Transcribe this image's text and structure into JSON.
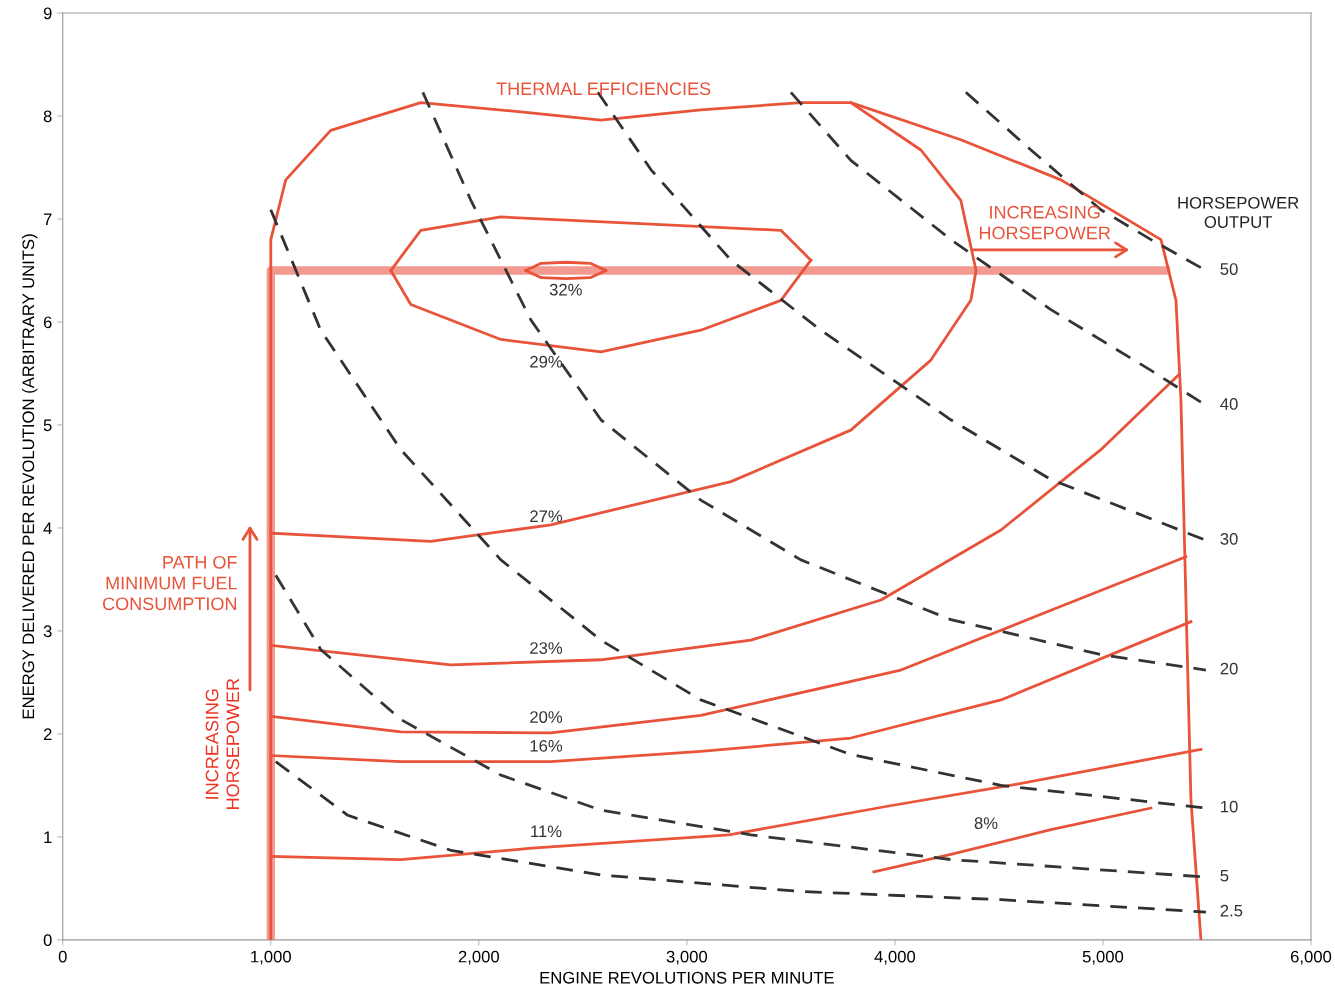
{
  "chart_data": {
    "type": "line",
    "xlabel": "ENGINE REVOLUTIONS PER MINUTE",
    "ylabel": "ENERGY DELIVERED PER REVOLUTION (ARBITRARY UNITS)",
    "xlim": [
      0,
      6000
    ],
    "ylim": [
      0,
      9
    ],
    "xticks": [
      0,
      {
        "value": 1000,
        "label": "1,000"
      },
      {
        "value": 2000,
        "label": "2,000"
      },
      {
        "value": 3000,
        "label": "3,000"
      },
      {
        "value": 4000,
        "label": "4,000"
      },
      {
        "value": 5000,
        "label": "5,000"
      },
      {
        "value": 6000,
        "label": "6,000"
      }
    ],
    "yticks": [
      0,
      1,
      2,
      3,
      4,
      5,
      6,
      7,
      8,
      9
    ],
    "grid": false,
    "legend": false,
    "marker": "none",
    "series": [
      {
        "color": "#f29a90",
        "line_style": "solid",
        "x": [
          1000,
          1000,
          5303
        ],
        "values": [
          0,
          6.5,
          6.5
        ]
      },
      {
        "color": "#e8533a",
        "line_style": "solid",
        "x": [
          1000,
          1000,
          1072,
          1288,
          1721,
          2202,
          2587,
          3067,
          3548,
          3788,
          4317,
          4798,
          5279,
          5351,
          5375,
          5399,
          5423,
          5471
        ],
        "values": [
          0,
          6.8,
          7.38,
          7.86,
          8.13,
          8.04,
          7.96,
          8.06,
          8.13,
          8.13,
          7.77,
          7.38,
          6.8,
          6.21,
          5.24,
          3.3,
          1.36,
          0
        ]
      },
      {
        "color": "#e9533a",
        "line_style": "solid",
        "x": [
          2226,
          2300,
          2418,
          2536,
          2610
        ],
        "values": [
          6.5,
          6.57,
          6.58,
          6.57,
          6.5
        ]
      },
      {
        "color": "#e9533a",
        "line_style": "solid",
        "x": [
          2226,
          2300,
          2418,
          2536,
          2610
        ],
        "values": [
          6.5,
          6.43,
          6.42,
          6.43,
          6.5
        ]
      },
      {
        "color": "#e8543a",
        "line_style": "solid",
        "x": [
          1577,
          1721,
          2106,
          2827,
          3452,
          3596
        ],
        "values": [
          6.5,
          6.89,
          7.02,
          6.95,
          6.89,
          6.6
        ]
      },
      {
        "color": "#e8543a",
        "line_style": "solid",
        "x": [
          1577,
          1673,
          2106,
          2587,
          3067,
          3452,
          3596
        ],
        "values": [
          6.5,
          6.17,
          5.83,
          5.71,
          5.92,
          6.21,
          6.6
        ]
      },
      {
        "color": "#e8533b",
        "line_style": "solid",
        "x": [
          1000,
          1769,
          2346,
          3212,
          3788,
          4173,
          4365,
          4390,
          4317,
          4125,
          3788
        ],
        "values": [
          3.95,
          3.87,
          4.03,
          4.45,
          4.95,
          5.63,
          6.21,
          6.5,
          7.18,
          7.67,
          8.13
        ]
      },
      {
        "color": "#e7533a",
        "line_style": "solid",
        "x": [
          1000,
          1865,
          2587,
          3308,
          3933,
          4510,
          4990,
          5366
        ],
        "values": [
          2.86,
          2.67,
          2.72,
          2.91,
          3.3,
          3.98,
          4.76,
          5.49
        ]
      },
      {
        "color": "#e8523a",
        "line_style": "solid",
        "x": [
          1000,
          1625,
          2346,
          3067,
          4029,
          4750,
          5399
        ],
        "values": [
          2.17,
          2.02,
          2.01,
          2.18,
          2.62,
          3.2,
          3.72
        ]
      },
      {
        "color": "#e85339",
        "line_style": "solid",
        "x": [
          1000,
          1625,
          2346,
          3067,
          3788,
          4510,
          5423
        ],
        "values": [
          1.79,
          1.73,
          1.73,
          1.83,
          1.96,
          2.33,
          3.09
        ]
      },
      {
        "color": "#e9543a",
        "line_style": "solid",
        "x": [
          1000,
          1625,
          2255,
          3202,
          3971,
          4582,
          5471
        ],
        "values": [
          0.81,
          0.78,
          0.89,
          1.02,
          1.3,
          1.51,
          1.85
        ]
      },
      {
        "color": "#e7523a",
        "line_style": "solid",
        "x": [
          3899,
          4269,
          4750,
          5231
        ],
        "values": [
          0.66,
          0.83,
          1.07,
          1.28
        ]
      },
      {
        "name": "50",
        "color": "#333333",
        "line_style": "dashed",
        "x": [
          4341,
          4654,
          4990,
          5231,
          5495
        ],
        "values": [
          8.23,
          7.67,
          7.09,
          6.8,
          6.5
        ]
      },
      {
        "name": "40",
        "color": "#343434",
        "line_style": "dashed",
        "x": [
          3500,
          3788,
          4269,
          4750,
          5231,
          5495
        ],
        "values": [
          8.23,
          7.57,
          6.8,
          6.12,
          5.53,
          5.19
        ]
      },
      {
        "name": "30",
        "color": "#323232",
        "line_style": "dashed",
        "x": [
          2572,
          2827,
          3212,
          3644,
          4269,
          4750,
          5495
        ],
        "values": [
          8.23,
          7.48,
          6.6,
          5.92,
          5.05,
          4.47,
          3.88
        ]
      },
      {
        "name": "20",
        "color": "#353535",
        "line_style": "dashed",
        "x": [
          1731,
          1962,
          2250,
          2587,
          3067,
          3548,
          4269,
          4990,
          5495
        ],
        "values": [
          8.23,
          7.18,
          6.02,
          5.05,
          4.27,
          3.69,
          3.11,
          2.77,
          2.62
        ]
      },
      {
        "name": "10",
        "color": "#313131",
        "line_style": "dashed",
        "x": [
          1000,
          1240,
          1625,
          2106,
          2587,
          3067,
          3788,
          4510,
          5495
        ],
        "values": [
          7.09,
          5.92,
          4.76,
          3.69,
          2.91,
          2.33,
          1.8,
          1.5,
          1.28
        ]
      },
      {
        "name": "5",
        "color": "#363636",
        "line_style": "dashed",
        "x": [
          1024,
          1240,
          1625,
          2106,
          2587,
          3308,
          4269,
          5495
        ],
        "values": [
          3.54,
          2.82,
          2.14,
          1.6,
          1.26,
          1.02,
          0.78,
          0.61
        ]
      },
      {
        "name": "2.5",
        "color": "#303030",
        "line_style": "dashed",
        "x": [
          1024,
          1370,
          1865,
          2587,
          3548,
          4510,
          5495
        ],
        "values": [
          1.73,
          1.21,
          0.87,
          0.63,
          0.47,
          0.39,
          0.27
        ]
      }
    ],
    "annotations": [
      "THERMAL EFFICIENCIES",
      "PATH OF\nMINIMUM FUEL\nCONSUMPTION",
      "INCREASING\nHORSEPOWER",
      "INCREASING\nHORSEPOWER",
      "HORSEPOWER\nOUTPUT",
      "32%",
      "29%",
      "27%",
      "23%",
      "20%",
      "16%",
      "11%",
      "8%"
    ]
  }
}
